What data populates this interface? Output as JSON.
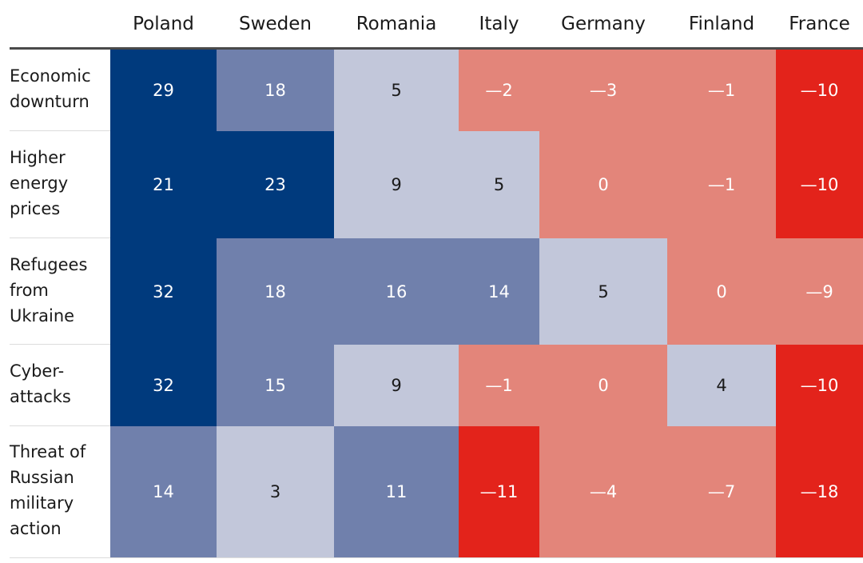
{
  "chart_data": {
    "type": "heatmap",
    "columns": [
      "Poland",
      "Sweden",
      "Romania",
      "Italy",
      "Germany",
      "Finland",
      "France"
    ],
    "rows": [
      {
        "label": "Economic\ndownturn",
        "values": [
          29,
          18,
          5,
          -2,
          -3,
          -1,
          -10
        ],
        "display": [
          "29",
          "18",
          "5",
          "—2",
          "—3",
          "—1",
          "—10"
        ]
      },
      {
        "label": "Higher\nenergy\nprices",
        "values": [
          21,
          23,
          9,
          5,
          0,
          -1,
          -10
        ],
        "display": [
          "21",
          "23",
          "9",
          "5",
          "0",
          "—1",
          "—10"
        ]
      },
      {
        "label": "Refugees\nfrom\nUkraine",
        "values": [
          32,
          18,
          16,
          14,
          5,
          0,
          -9
        ],
        "display": [
          "32",
          "18",
          "16",
          "14",
          "5",
          "0",
          "—9"
        ]
      },
      {
        "label": "Cyber-\nattacks",
        "values": [
          32,
          15,
          9,
          -1,
          0,
          4,
          -10
        ],
        "display": [
          "32",
          "15",
          "9",
          "—1",
          "0",
          "4",
          "—10"
        ]
      },
      {
        "label": "Threat of\nRussian\nmilitary\naction",
        "values": [
          14,
          3,
          11,
          -11,
          -4,
          -7,
          -18
        ],
        "display": [
          "14",
          "3",
          "11",
          "—11",
          "—4",
          "—7",
          "—18"
        ]
      }
    ],
    "color_bins": [
      {
        "min": 20,
        "color": "#003a7d",
        "text_color": "#ffffff"
      },
      {
        "min": 10,
        "color": "#7080ac",
        "text_color": "#ffffff"
      },
      {
        "min": 3,
        "color": "#c2c7da",
        "text_color": "#1a1a1a"
      },
      {
        "min": -9,
        "color": "#e3857a",
        "text_color": "#ffffff"
      },
      {
        "min": -1000,
        "color": "#e3231b",
        "text_color": "#ffffff"
      }
    ]
  }
}
